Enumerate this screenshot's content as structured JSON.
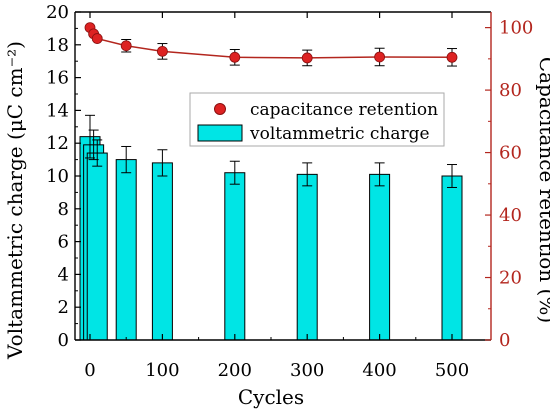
{
  "chart_data": {
    "type": "bar+line",
    "x": [
      0,
      5,
      10,
      50,
      100,
      200,
      300,
      400,
      500
    ],
    "xlabel": "Cycles",
    "xlim": [
      -15,
      530
    ],
    "xticks": [
      0,
      100,
      200,
      300,
      400,
      500
    ],
    "ylabel_left": "Voltammetric charge (μC cm⁻²)",
    "ylim_left": [
      0,
      20
    ],
    "yticks_left": [
      0,
      2,
      4,
      6,
      8,
      10,
      12,
      14,
      16,
      18,
      20
    ],
    "ylabel_right": "Capacitance retention (%)",
    "ylim_right": [
      0,
      105
    ],
    "yticks_right": [
      0,
      20,
      40,
      60,
      80,
      100
    ],
    "grid": false,
    "legend_position": "upper-right",
    "series": [
      {
        "name": "voltammetric charge",
        "kind": "bar",
        "axis": "left",
        "x": [
          0,
          5,
          10,
          50,
          100,
          200,
          300,
          400,
          500
        ],
        "values": [
          12.4,
          11.9,
          11.4,
          11.0,
          10.8,
          10.2,
          10.1,
          10.1,
          10.0
        ],
        "errors": [
          1.3,
          0.9,
          0.8,
          0.8,
          0.8,
          0.7,
          0.7,
          0.7,
          0.7
        ]
      },
      {
        "name": "capacitance retention",
        "kind": "line-marker",
        "axis": "right",
        "x": [
          0,
          5,
          10,
          50,
          100,
          200,
          300,
          400,
          500
        ],
        "values": [
          100,
          98,
          96.5,
          94.2,
          92.4,
          90.5,
          90.3,
          90.6,
          90.5
        ],
        "errors": [
          0.5,
          0.5,
          0.5,
          2.0,
          2.5,
          2.5,
          2.5,
          2.8,
          2.8
        ]
      }
    ],
    "colors": {
      "bar_fill": "#00e5e5",
      "bar_stroke": "#000000",
      "line": "#b3261e",
      "marker": "#dd2222",
      "right_axis": "#b3261e"
    }
  }
}
